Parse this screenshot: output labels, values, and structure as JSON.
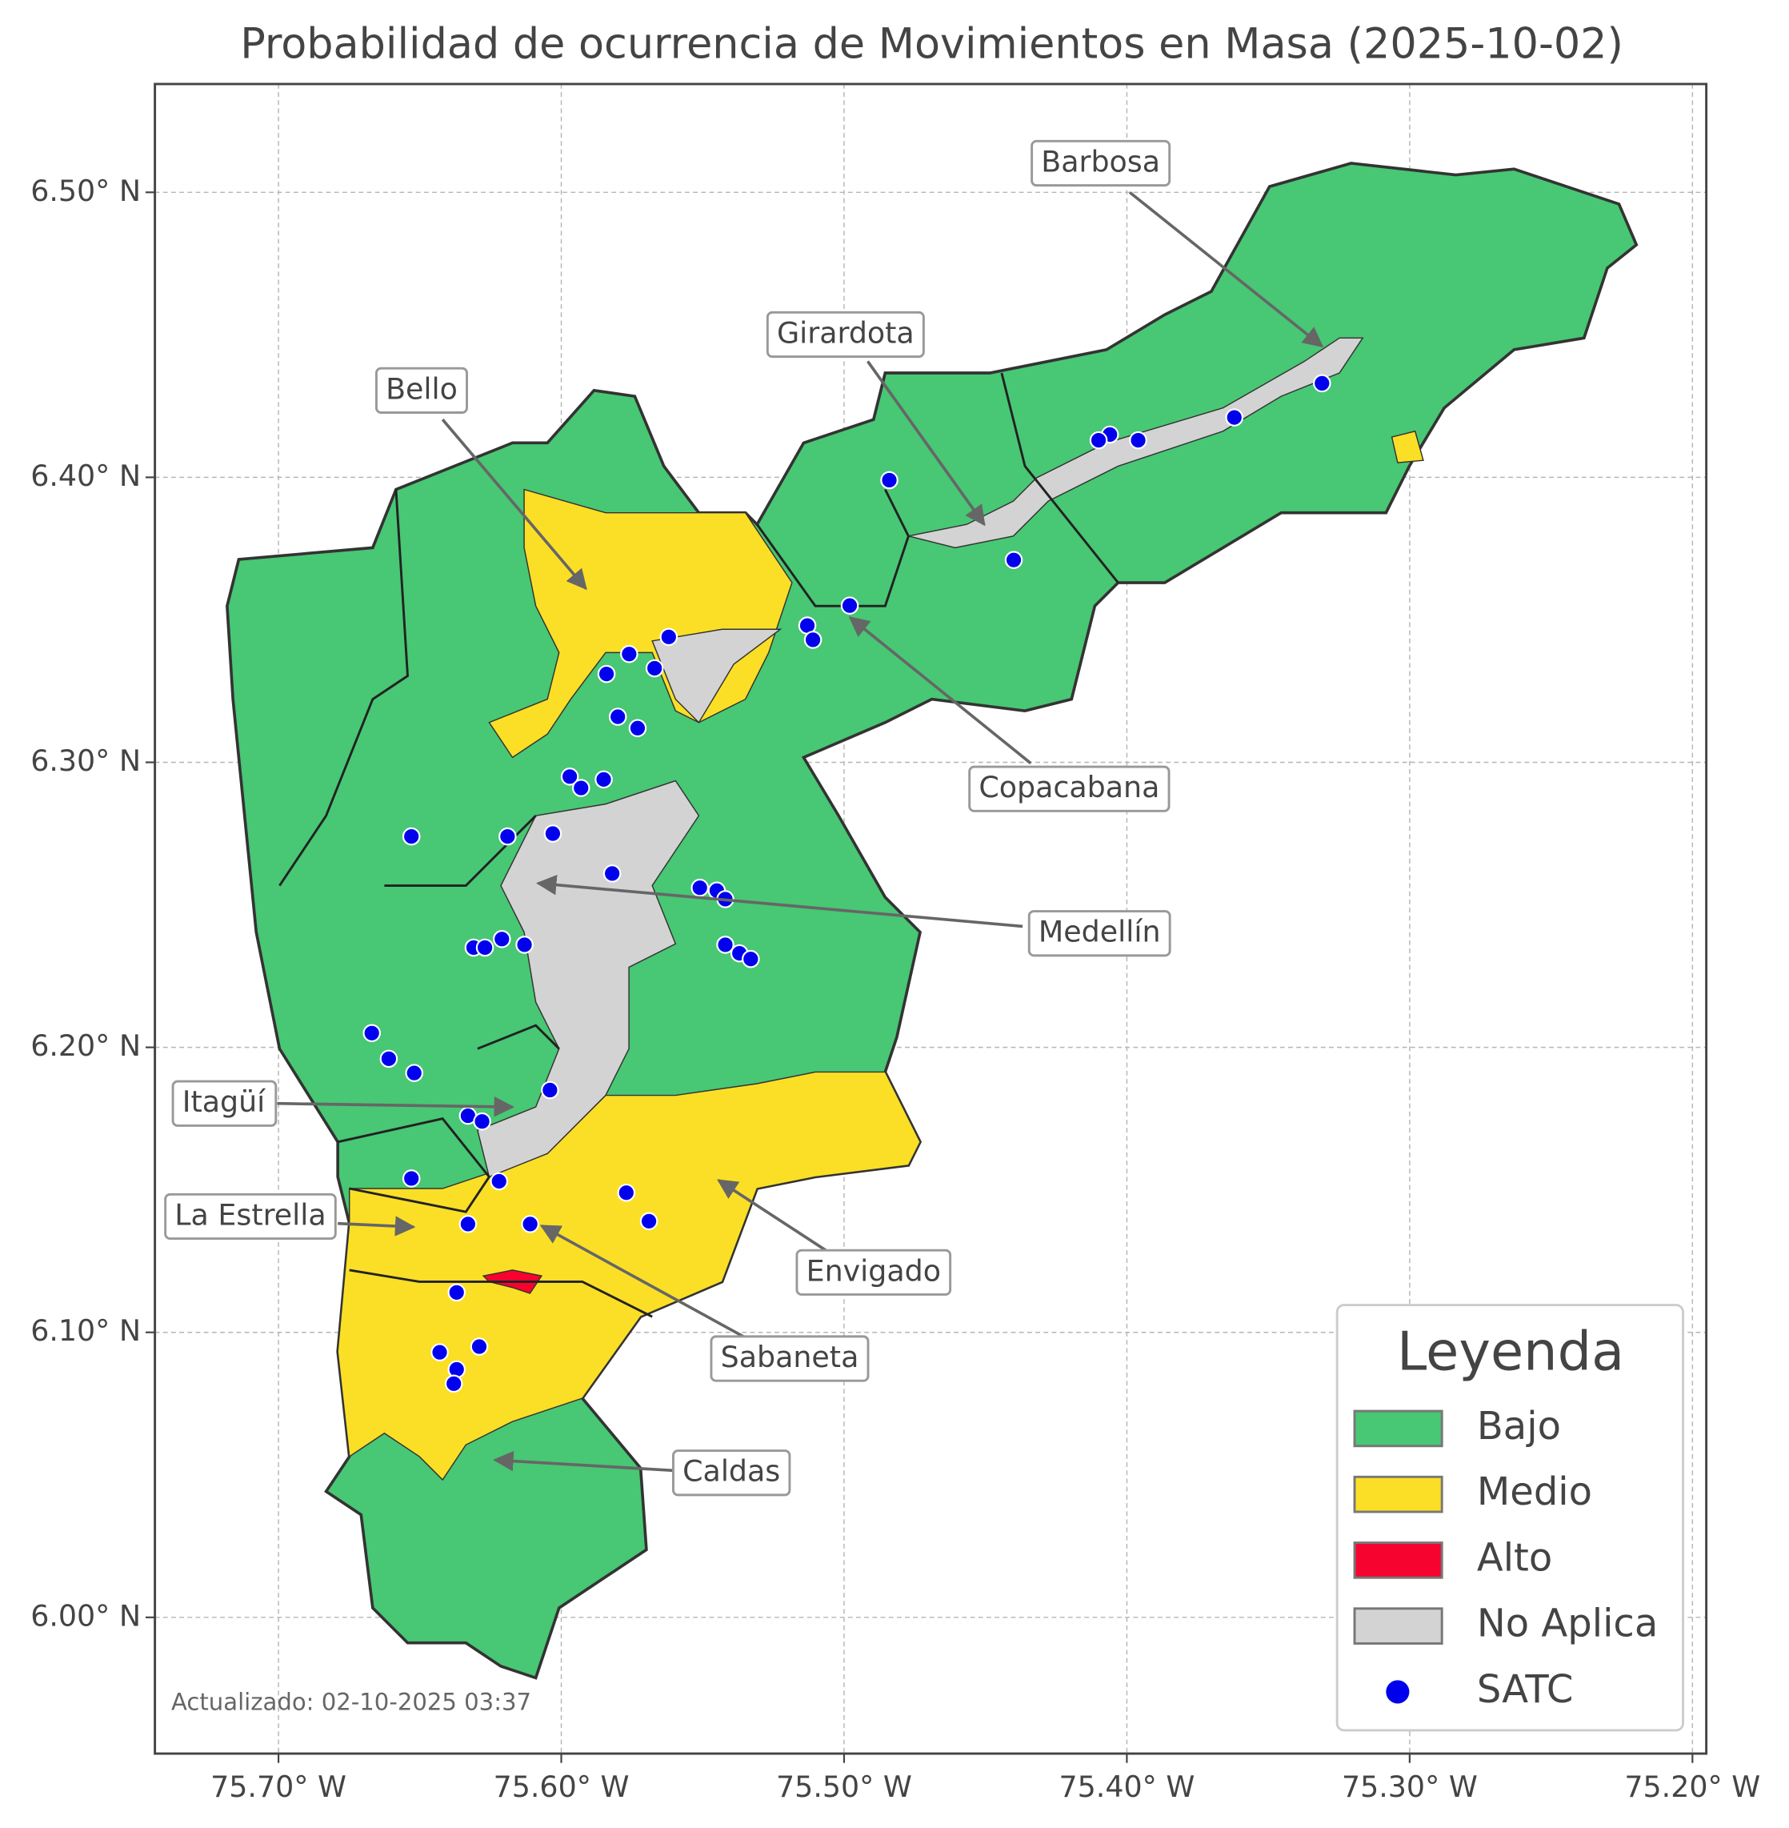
{
  "chart_data": {
    "type": "map",
    "title": "Probabilidad de ocurrencia de Movimientos en Masa (2025-10-02)",
    "updated": "Actualizado: 02-10-2025 03:37",
    "xlim": [
      -75.7437,
      -75.1951
    ],
    "ylim": [
      5.9522,
      6.538
    ],
    "xticks": [
      {
        "value": -75.7,
        "label": "75.70° W"
      },
      {
        "value": -75.6,
        "label": "75.60° W"
      },
      {
        "value": -75.5,
        "label": "75.50° W"
      },
      {
        "value": -75.4,
        "label": "75.40° W"
      },
      {
        "value": -75.3,
        "label": "75.30° W"
      },
      {
        "value": -75.2,
        "label": "75.20° W"
      }
    ],
    "yticks": [
      {
        "value": 6.0,
        "label": "6.00° N"
      },
      {
        "value": 6.1,
        "label": "6.10° N"
      },
      {
        "value": 6.2,
        "label": "6.20° N"
      },
      {
        "value": 6.3,
        "label": "6.30° N"
      },
      {
        "value": 6.4,
        "label": "6.40° N"
      },
      {
        "value": 6.5,
        "label": "6.50° N"
      }
    ],
    "grid": true,
    "legend": {
      "title": "Leyenda",
      "position": "lower right",
      "entries": [
        {
          "name": "Bajo",
          "color": "#48c774"
        },
        {
          "name": "Medio",
          "color": "#fbdf26"
        },
        {
          "name": "Alto",
          "color": "#f7032f"
        },
        {
          "name": "No Aplica",
          "color": "#d3d3d3"
        },
        {
          "name": "SATC",
          "color": "#0000ee"
        }
      ]
    },
    "annotations": [
      "Barbosa",
      "Girardota",
      "Bello",
      "Copacabana",
      "Medellín",
      "Itagüí",
      "La Estrella",
      "Envigado",
      "Sabaneta",
      "Caldas"
    ],
    "satc": {
      "lon": [
        -75.331,
        -75.362,
        -75.396,
        -75.406,
        -75.41,
        -75.484,
        -75.44,
        -75.498,
        -75.513,
        -75.511,
        -75.562,
        -75.576,
        -75.584,
        -75.567,
        -75.58,
        -75.573,
        -75.597,
        -75.593,
        -75.585,
        -75.653,
        -75.619,
        -75.603,
        -75.582,
        -75.551,
        -75.545,
        -75.542,
        -75.542,
        -75.537,
        -75.533,
        -75.631,
        -75.627,
        -75.621,
        -75.613,
        -75.667,
        -75.661,
        -75.652,
        -75.604,
        -75.633,
        -75.628,
        -75.653,
        -75.622,
        -75.577,
        -75.569,
        -75.633,
        -75.611,
        -75.637,
        -75.643,
        -75.629,
        -75.637,
        -75.638
      ],
      "lat": [
        6.433,
        6.421,
        6.413,
        6.415,
        6.413,
        6.399,
        6.371,
        6.355,
        6.348,
        6.343,
        6.344,
        6.338,
        6.331,
        6.333,
        6.316,
        6.312,
        6.295,
        6.291,
        6.294,
        6.274,
        6.274,
        6.275,
        6.261,
        6.256,
        6.255,
        6.252,
        6.236,
        6.233,
        6.231,
        6.235,
        6.235,
        6.238,
        6.236,
        6.205,
        6.196,
        6.191,
        6.185,
        6.176,
        6.174,
        6.154,
        6.153,
        6.149,
        6.139,
        6.138,
        6.138,
        6.114,
        6.093,
        6.095,
        6.087,
        6.082
      ]
    }
  }
}
